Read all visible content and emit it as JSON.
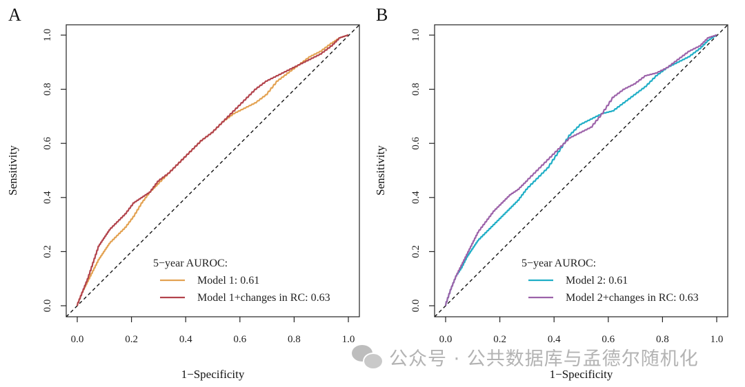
{
  "chart_data": [
    {
      "type": "line",
      "panel_label": "A",
      "title": "",
      "xlabel": "1−Specificity",
      "ylabel": "Sensitivity",
      "xlim": [
        0,
        1
      ],
      "ylim": [
        0,
        1
      ],
      "xticks": [
        "0.0",
        "0.2",
        "0.4",
        "0.6",
        "0.8",
        "1.0"
      ],
      "yticks": [
        "0.0",
        "0.2",
        "0.4",
        "0.6",
        "0.8",
        "1.0"
      ],
      "reference_line": "diagonal-dashed",
      "legend": {
        "title": "5−year AUROC:",
        "placement": "bottom-right"
      },
      "series": [
        {
          "name": "Model 1: 0.61",
          "color": "#E3A252",
          "x": [
            0,
            0.02,
            0.04,
            0.06,
            0.08,
            0.1,
            0.12,
            0.15,
            0.18,
            0.21,
            0.24,
            0.27,
            0.3,
            0.34,
            0.38,
            0.42,
            0.46,
            0.5,
            0.54,
            0.58,
            0.62,
            0.66,
            0.7,
            0.74,
            0.78,
            0.82,
            0.86,
            0.9,
            0.94,
            0.97,
            1.0
          ],
          "y": [
            0,
            0.05,
            0.09,
            0.13,
            0.17,
            0.2,
            0.23,
            0.26,
            0.29,
            0.33,
            0.38,
            0.42,
            0.45,
            0.49,
            0.53,
            0.57,
            0.61,
            0.64,
            0.68,
            0.71,
            0.73,
            0.75,
            0.78,
            0.83,
            0.86,
            0.89,
            0.92,
            0.94,
            0.97,
            0.99,
            1.0
          ]
        },
        {
          "name": "Model 1+changes in RC: 0.63",
          "color": "#B2434C",
          "x": [
            0,
            0.02,
            0.04,
            0.06,
            0.08,
            0.1,
            0.12,
            0.15,
            0.18,
            0.21,
            0.24,
            0.27,
            0.3,
            0.34,
            0.38,
            0.42,
            0.46,
            0.5,
            0.54,
            0.58,
            0.62,
            0.66,
            0.7,
            0.74,
            0.78,
            0.82,
            0.86,
            0.9,
            0.94,
            0.97,
            1.0
          ],
          "y": [
            0,
            0.05,
            0.1,
            0.16,
            0.22,
            0.25,
            0.28,
            0.31,
            0.34,
            0.38,
            0.4,
            0.42,
            0.46,
            0.49,
            0.53,
            0.57,
            0.61,
            0.64,
            0.68,
            0.72,
            0.76,
            0.8,
            0.83,
            0.85,
            0.87,
            0.89,
            0.91,
            0.93,
            0.96,
            0.99,
            1.0
          ]
        }
      ]
    },
    {
      "type": "line",
      "panel_label": "B",
      "title": "",
      "xlabel": "1−Specificity",
      "ylabel": "Sensitivity",
      "xlim": [
        0,
        1
      ],
      "ylim": [
        0,
        1
      ],
      "xticks": [
        "0.0",
        "0.2",
        "0.4",
        "0.6",
        "0.8",
        "1.0"
      ],
      "yticks": [
        "0.0",
        "0.2",
        "0.4",
        "0.6",
        "0.8",
        "1.0"
      ],
      "reference_line": "diagonal-dashed",
      "legend": {
        "title": "5−year AUROC:",
        "placement": "bottom-right"
      },
      "series": [
        {
          "name": "Model 2: 0.61",
          "color": "#1EAEC6",
          "x": [
            0,
            0.02,
            0.04,
            0.06,
            0.08,
            0.1,
            0.12,
            0.15,
            0.18,
            0.21,
            0.24,
            0.27,
            0.3,
            0.34,
            0.38,
            0.42,
            0.46,
            0.5,
            0.54,
            0.58,
            0.62,
            0.66,
            0.7,
            0.74,
            0.78,
            0.82,
            0.86,
            0.9,
            0.94,
            0.97,
            1.0
          ],
          "y": [
            0,
            0.06,
            0.11,
            0.14,
            0.18,
            0.21,
            0.24,
            0.27,
            0.3,
            0.33,
            0.36,
            0.39,
            0.43,
            0.47,
            0.51,
            0.57,
            0.63,
            0.67,
            0.69,
            0.71,
            0.72,
            0.75,
            0.78,
            0.81,
            0.85,
            0.88,
            0.9,
            0.92,
            0.95,
            0.98,
            1.0
          ]
        },
        {
          "name": "Model 2+changes in RC: 0.63",
          "color": "#9C62A9",
          "x": [
            0,
            0.02,
            0.04,
            0.06,
            0.08,
            0.1,
            0.12,
            0.15,
            0.18,
            0.21,
            0.24,
            0.27,
            0.3,
            0.34,
            0.38,
            0.42,
            0.46,
            0.5,
            0.54,
            0.58,
            0.62,
            0.66,
            0.7,
            0.74,
            0.78,
            0.82,
            0.86,
            0.9,
            0.94,
            0.97,
            1.0
          ],
          "y": [
            0,
            0.06,
            0.11,
            0.15,
            0.19,
            0.23,
            0.27,
            0.31,
            0.35,
            0.38,
            0.41,
            0.43,
            0.46,
            0.5,
            0.54,
            0.58,
            0.62,
            0.64,
            0.66,
            0.71,
            0.77,
            0.8,
            0.82,
            0.85,
            0.86,
            0.88,
            0.91,
            0.94,
            0.96,
            0.99,
            1.0
          ]
        }
      ]
    }
  ],
  "watermark": {
    "text": "公众号 · 公共数据库与孟德尔随机化",
    "icon": "wechat-icon"
  }
}
